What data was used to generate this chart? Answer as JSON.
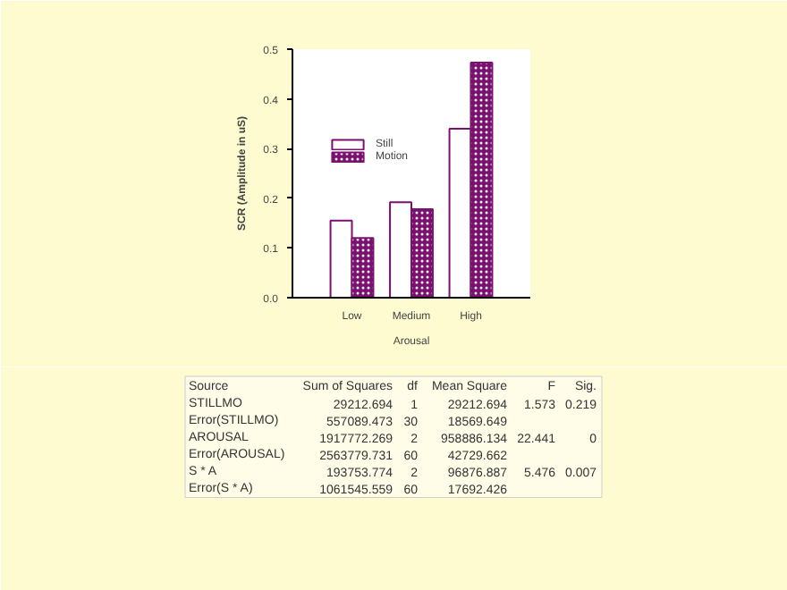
{
  "chart_data": {
    "type": "bar",
    "xlabel": "Arousal",
    "ylabel": "SCR (Amplitude in uS)",
    "categories": [
      "Low",
      "Medium",
      "High"
    ],
    "series": [
      {
        "name": "Still",
        "color": "#ffffff",
        "values": [
          0.155,
          0.192,
          0.34
        ]
      },
      {
        "name": "Motion",
        "color": "#7b1070",
        "values": [
          0.12,
          0.178,
          0.473
        ]
      }
    ],
    "ylim": [
      0,
      0.5
    ],
    "yticks": [
      {
        "value": 0,
        "label": "0.0"
      },
      0.1,
      0.2,
      0.3,
      0.4,
      0.5
    ],
    "grid": false,
    "legend": "center",
    "annotations": [
      "Source\tSum of Squares\tdf\tMean Square\tF\tSig.",
      "STILLMO\t29212.694\t1\t29212.694\t1.573\t0.219",
      "Error(STILLMO)\t557089.473\t30\t18569.649\t\t",
      "AROUSAL\t1917772.269\t2\t958886.134\t22.441\t0",
      "Error(AROUSAL)\t2563779.731\t60\t42729.662\t\t",
      "S * A\t193753.774\t2\t96876.887\t5.476\t0.007",
      "Error(S * A)\t1061545.559\t60\t17692.426\t\t"
    ]
  }
}
